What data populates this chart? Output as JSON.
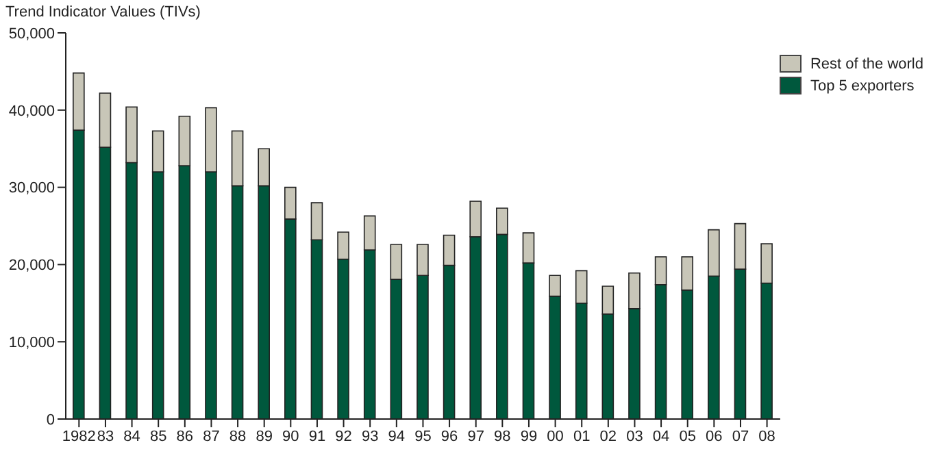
{
  "chart_data": {
    "type": "bar",
    "ylabel": "Trend Indicator Values (TIVs)",
    "stacked": true,
    "categories": [
      "1982",
      "83",
      "84",
      "85",
      "86",
      "87",
      "88",
      "89",
      "90",
      "91",
      "92",
      "93",
      "94",
      "95",
      "96",
      "97",
      "98",
      "99",
      "00",
      "01",
      "02",
      "03",
      "04",
      "05",
      "06",
      "07",
      "08"
    ],
    "series": [
      {
        "name": "Top 5 exporters",
        "color": "#00583d",
        "values": [
          37400,
          35200,
          33200,
          32000,
          32800,
          32000,
          30200,
          30200,
          25900,
          23200,
          20700,
          21900,
          18100,
          18600,
          19900,
          23600,
          23900,
          20200,
          15900,
          15000,
          13600,
          14300,
          17400,
          16700,
          18500,
          19400,
          17600
        ]
      },
      {
        "name": "Rest of the world",
        "color": "#c8c6b8",
        "values": [
          7400,
          7000,
          7200,
          5300,
          6400,
          8300,
          7100,
          4800,
          4100,
          4800,
          3500,
          4400,
          4500,
          4000,
          3900,
          4600,
          3400,
          3900,
          2700,
          4200,
          3600,
          4600,
          3600,
          4300,
          6000,
          5900,
          5100
        ]
      }
    ],
    "ylim": [
      0,
      50000
    ],
    "yticks": [
      0,
      {
        "value": 10000,
        "label": "10,000"
      },
      {
        "value": 20000,
        "label": "20,000"
      },
      {
        "value": 30000,
        "label": "30,000"
      },
      {
        "value": 40000,
        "label": "40,000"
      },
      {
        "value": 50000,
        "label": "50,000"
      }
    ],
    "legend": "top right",
    "grid": false
  }
}
